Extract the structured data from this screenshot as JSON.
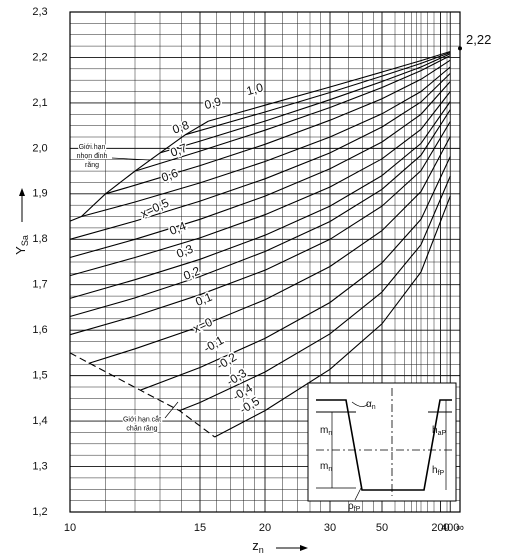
{
  "chart_data": {
    "type": "line",
    "ylabel": {
      "main": "Y",
      "sub": "Sa"
    },
    "xlabel": {
      "main": "z",
      "sub": "n"
    },
    "xscale": "reciprocal",
    "xlim": [
      10,
      null
    ],
    "ylim": [
      1.2,
      2.3
    ],
    "xticks": [
      10,
      15,
      20,
      30,
      50,
      200,
      400,
      {
        "value": null,
        "label": "∞"
      }
    ],
    "yticks": [
      {
        "value": 1.2,
        "label": "1,2"
      },
      {
        "value": 1.3,
        "label": "1,3"
      },
      {
        "value": 1.4,
        "label": "1,4"
      },
      {
        "value": 1.5,
        "label": "1,5"
      },
      {
        "value": 1.6,
        "label": "1,6"
      },
      {
        "value": 1.7,
        "label": "1,7"
      },
      {
        "value": 1.8,
        "label": "1,8"
      },
      {
        "value": 1.9,
        "label": "1,9"
      },
      {
        "value": 2.0,
        "label": "2,0"
      },
      {
        "value": 2.1,
        "label": "2,1"
      },
      {
        "value": 2.2,
        "label": "2,2"
      },
      {
        "value": 2.3,
        "label": "2,3"
      }
    ],
    "xgrid_minor": [
      11,
      12,
      13,
      14,
      16,
      17,
      18,
      19,
      22,
      24,
      26,
      28,
      35,
      40,
      45,
      60,
      70,
      80,
      90,
      100,
      120,
      150,
      300
    ],
    "ygrid_minor": [
      1.225,
      1.25,
      1.275,
      1.325,
      1.35,
      1.375,
      1.425,
      1.45,
      1.475,
      1.525,
      1.55,
      1.575,
      1.625,
      1.65,
      1.675,
      1.725,
      1.75,
      1.775,
      1.825,
      1.85,
      1.875,
      1.925,
      1.95,
      1.975,
      2.025,
      2.05,
      2.075,
      2.125,
      2.15,
      2.175,
      2.225,
      2.25,
      2.275
    ],
    "grid": true,
    "color": "#000000",
    "endpoint": {
      "value": 2.22,
      "label": "2,22"
    },
    "series": [
      {
        "name": "1,0",
        "x": [
          15.5,
          20,
          30,
          50,
          100,
          400
        ],
        "values": [
          2.06,
          2.095,
          2.135,
          2.168,
          2.193,
          2.213
        ]
      },
      {
        "name": "0,9",
        "x": [
          14.2,
          20,
          30,
          50,
          100,
          400
        ],
        "values": [
          2.03,
          2.08,
          2.123,
          2.159,
          2.187,
          2.211
        ]
      },
      {
        "name": "0,8",
        "x": [
          13,
          15,
          20,
          30,
          50,
          100,
          400
        ],
        "values": [
          1.99,
          2.016,
          2.06,
          2.107,
          2.147,
          2.179,
          2.208
        ]
      },
      {
        "name": "0,7",
        "x": [
          12,
          15,
          20,
          30,
          50,
          100,
          400
        ],
        "values": [
          1.95,
          1.994,
          2.04,
          2.09,
          2.134,
          2.171,
          2.204
        ]
      },
      {
        "name": "0,6",
        "x": [
          11,
          12,
          15,
          20,
          30,
          50,
          100,
          400
        ],
        "values": [
          1.9,
          1.919,
          1.962,
          2.009,
          2.062,
          2.109,
          2.152,
          2.194
        ]
      },
      {
        "name": "x=0,5",
        "x": [
          10.3,
          12,
          15,
          20,
          30,
          50,
          100,
          400
        ],
        "values": [
          1.85,
          1.882,
          1.924,
          1.971,
          2.025,
          2.076,
          2.125,
          2.179
        ]
      },
      {
        "name": "0,4",
        "x": [
          10,
          12,
          15,
          20,
          30,
          50,
          100,
          400
        ],
        "values": [
          1.8,
          1.84,
          1.884,
          1.933,
          1.99,
          2.047,
          2.102,
          2.165
        ]
      },
      {
        "name": "0,3",
        "x": [
          10,
          12,
          15,
          20,
          30,
          50,
          100,
          400
        ],
        "values": [
          1.76,
          1.8,
          1.844,
          1.895,
          1.955,
          2.014,
          2.075,
          2.147
        ]
      },
      {
        "name": "0,2",
        "x": [
          10,
          12,
          15,
          20,
          30,
          50,
          100,
          400
        ],
        "values": [
          1.72,
          1.76,
          1.803,
          1.854,
          1.915,
          1.977,
          2.042,
          2.125
        ]
      },
      {
        "name": "0,1",
        "x": [
          10,
          12,
          15,
          20,
          30,
          50,
          100,
          400
        ],
        "values": [
          1.67,
          1.711,
          1.756,
          1.809,
          1.873,
          1.94,
          2.011,
          2.103
        ]
      },
      {
        "name": "x=0",
        "x": [
          10,
          12,
          15,
          20,
          30,
          50,
          100,
          400
        ],
        "values": [
          1.63,
          1.671,
          1.718,
          1.773,
          1.839,
          1.91,
          1.985,
          2.085
        ]
      },
      {
        "name": "-0,1",
        "x": [
          10,
          12,
          15,
          20,
          30,
          50,
          100,
          400
        ],
        "values": [
          1.59,
          1.631,
          1.678,
          1.732,
          1.8,
          1.873,
          1.951,
          2.059
        ]
      },
      {
        "name": "-0,2",
        "x": [
          10.5,
          12,
          15,
          20,
          30,
          50,
          100,
          400
        ],
        "values": [
          1.527,
          1.559,
          1.608,
          1.667,
          1.74,
          1.819,
          1.905,
          2.026
        ]
      },
      {
        "name": "-0,3",
        "x": [
          12.2,
          15,
          20,
          30,
          50,
          100,
          400
        ],
        "values": [
          1.468,
          1.518,
          1.582,
          1.661,
          1.748,
          1.844,
          1.982
        ]
      },
      {
        "name": "-0,4",
        "x": [
          13.9,
          15,
          20,
          30,
          50,
          100,
          400
        ],
        "values": [
          1.423,
          1.441,
          1.508,
          1.592,
          1.684,
          1.788,
          1.939
        ]
      },
      {
        "name": "-0,5",
        "x": [
          15.9,
          20,
          30,
          50,
          100,
          400
        ],
        "values": [
          1.365,
          1.423,
          1.514,
          1.614,
          1.728,
          1.895
        ]
      }
    ],
    "boundaries": [
      {
        "lines": [
          "Giới hạn",
          "nhọn đỉnh",
          "răng"
        ],
        "dashed": false,
        "x": [
          10,
          10.3,
          11,
          12,
          13,
          14.2,
          15.5
        ],
        "values": [
          1.84,
          1.85,
          1.9,
          1.95,
          1.99,
          2.03,
          2.06
        ]
      },
      {
        "lines": [
          "Giới hạn cắt",
          "chân răng"
        ],
        "dashed": true,
        "x": [
          10,
          12.2,
          13.9,
          15.9
        ],
        "values": [
          1.55,
          1.468,
          1.423,
          1.365
        ]
      }
    ]
  },
  "inset": {
    "labels": [
      {
        "text": "α",
        "sub": "n"
      },
      {
        "text": "m",
        "sub": "n"
      },
      {
        "text": "m",
        "sub": "n"
      },
      {
        "text": "h",
        "sub": "aP"
      },
      {
        "text": "h",
        "sub": "fP"
      },
      {
        "text": "ρ",
        "sub": "fP"
      }
    ]
  }
}
